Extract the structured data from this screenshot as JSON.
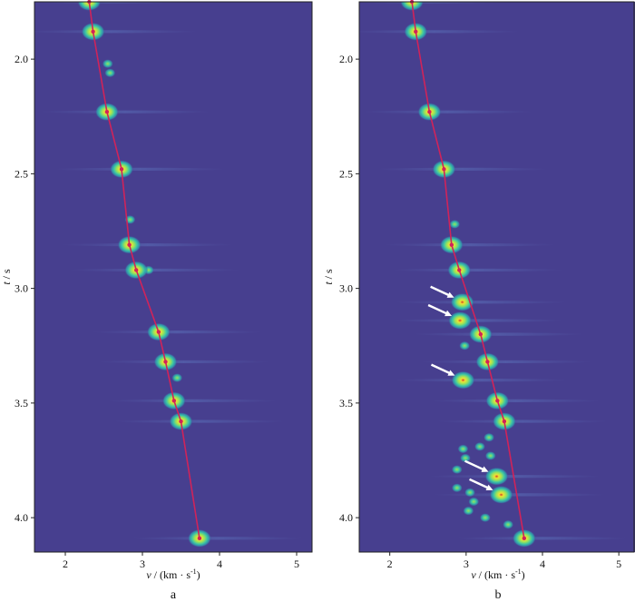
{
  "figure": {
    "background": "#473f8f",
    "blob_colors": [
      "#2f9fb0",
      "#3bc6a5",
      "#9be25a",
      "#f0e233",
      "#cf3a2a"
    ],
    "curve_color": "#d0235a",
    "arrow_color": "#ffffff"
  },
  "chart_data": [
    {
      "type": "heatmap",
      "panel_label": "a",
      "xlabel_var": "v",
      "xlabel_unit": "/ (km · s",
      "xlabel_sup": "-1",
      "xlabel_close": ")",
      "ylabel_var": "t",
      "ylabel_unit": " / s",
      "xlim": [
        1.6,
        5.2
      ],
      "ylim": [
        4.15,
        1.75
      ],
      "xticks": [
        2,
        3,
        4,
        5
      ],
      "yticks": [
        "2.0",
        "2.5",
        "3.0",
        "3.5",
        "4.0"
      ],
      "dispersion_curve": [
        {
          "t": 1.75,
          "v": 2.31
        },
        {
          "t": 1.88,
          "v": 2.36
        },
        {
          "t": 2.23,
          "v": 2.54
        },
        {
          "t": 2.48,
          "v": 2.73
        },
        {
          "t": 2.81,
          "v": 2.83
        },
        {
          "t": 2.92,
          "v": 2.92
        },
        {
          "t": 3.19,
          "v": 3.21
        },
        {
          "t": 3.32,
          "v": 3.3
        },
        {
          "t": 3.49,
          "v": 3.41
        },
        {
          "t": 3.58,
          "v": 3.5
        },
        {
          "t": 4.09,
          "v": 3.74
        }
      ],
      "energy_peaks": [
        {
          "t": 1.75,
          "v": 2.31
        },
        {
          "t": 1.88,
          "v": 2.36
        },
        {
          "t": 2.23,
          "v": 2.54
        },
        {
          "t": 2.48,
          "v": 2.73
        },
        {
          "t": 2.81,
          "v": 2.83
        },
        {
          "t": 2.92,
          "v": 2.92
        },
        {
          "t": 3.19,
          "v": 3.21
        },
        {
          "t": 3.32,
          "v": 3.3
        },
        {
          "t": 3.49,
          "v": 3.41
        },
        {
          "t": 3.58,
          "v": 3.5
        },
        {
          "t": 4.09,
          "v": 3.74
        }
      ],
      "secondary_spots": [
        {
          "t": 2.02,
          "v": 2.55
        },
        {
          "t": 2.06,
          "v": 2.58
        },
        {
          "t": 2.7,
          "v": 2.84
        },
        {
          "t": 2.92,
          "v": 3.08
        },
        {
          "t": 3.39,
          "v": 3.45
        }
      ],
      "arrows": []
    },
    {
      "type": "heatmap",
      "panel_label": "b",
      "xlabel_var": "v",
      "xlabel_unit": "/ (km · s",
      "xlabel_sup": "-1",
      "xlabel_close": ")",
      "ylabel_var": "t",
      "ylabel_unit": " / s",
      "xlim": [
        1.6,
        5.2
      ],
      "ylim": [
        4.15,
        1.75
      ],
      "xticks": [
        2,
        3,
        4,
        5
      ],
      "yticks": [
        "2.0",
        "2.5",
        "3.0",
        "3.5",
        "4.0"
      ],
      "dispersion_curve": [
        {
          "t": 1.75,
          "v": 2.29
        },
        {
          "t": 1.88,
          "v": 2.34
        },
        {
          "t": 2.23,
          "v": 2.52
        },
        {
          "t": 2.48,
          "v": 2.71
        },
        {
          "t": 2.81,
          "v": 2.81
        },
        {
          "t": 2.92,
          "v": 2.91
        },
        {
          "t": 3.2,
          "v": 3.19
        },
        {
          "t": 3.32,
          "v": 3.28
        },
        {
          "t": 3.49,
          "v": 3.41
        },
        {
          "t": 3.58,
          "v": 3.5
        },
        {
          "t": 4.09,
          "v": 3.76
        }
      ],
      "energy_peaks": [
        {
          "t": 1.75,
          "v": 2.29
        },
        {
          "t": 1.88,
          "v": 2.34
        },
        {
          "t": 2.23,
          "v": 2.52
        },
        {
          "t": 2.48,
          "v": 2.71
        },
        {
          "t": 2.81,
          "v": 2.81
        },
        {
          "t": 2.92,
          "v": 2.91
        },
        {
          "t": 3.06,
          "v": 2.95
        },
        {
          "t": 3.14,
          "v": 2.92
        },
        {
          "t": 3.2,
          "v": 3.19
        },
        {
          "t": 3.32,
          "v": 3.28
        },
        {
          "t": 3.4,
          "v": 2.96
        },
        {
          "t": 3.49,
          "v": 3.41
        },
        {
          "t": 3.58,
          "v": 3.5
        },
        {
          "t": 3.82,
          "v": 3.4
        },
        {
          "t": 3.9,
          "v": 3.46
        },
        {
          "t": 4.09,
          "v": 3.76
        }
      ],
      "secondary_spots": [
        {
          "t": 2.72,
          "v": 2.85
        },
        {
          "t": 3.25,
          "v": 2.98
        },
        {
          "t": 3.65,
          "v": 3.3
        },
        {
          "t": 3.7,
          "v": 2.96
        },
        {
          "t": 3.74,
          "v": 2.99
        },
        {
          "t": 3.79,
          "v": 2.88
        },
        {
          "t": 3.87,
          "v": 2.88
        },
        {
          "t": 3.89,
          "v": 3.05
        },
        {
          "t": 3.93,
          "v": 3.1
        },
        {
          "t": 3.97,
          "v": 3.03
        },
        {
          "t": 4.0,
          "v": 3.25
        },
        {
          "t": 3.73,
          "v": 3.32
        },
        {
          "t": 3.69,
          "v": 3.18
        },
        {
          "t": 4.03,
          "v": 3.55
        }
      ],
      "arrows": [
        {
          "t": 3.06,
          "v": 2.95
        },
        {
          "t": 3.14,
          "v": 2.92
        },
        {
          "t": 3.4,
          "v": 2.96
        },
        {
          "t": 3.82,
          "v": 3.4
        },
        {
          "t": 3.9,
          "v": 3.46
        }
      ]
    }
  ]
}
